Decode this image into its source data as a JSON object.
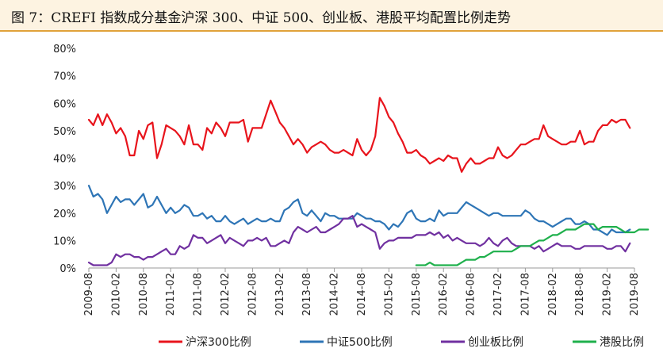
{
  "title": "图 7：CREFI 指数成分基金沪深 300、中证 500、创业板、港股平均配置比例走势",
  "chart_data": {
    "type": "line",
    "ylim": [
      0,
      80
    ],
    "yticks": [
      "0%",
      "10%",
      "20%",
      "30%",
      "40%",
      "50%",
      "60%",
      "70%",
      "80%"
    ],
    "xticks": [
      "2009-08",
      "2010-02",
      "2010-08",
      "2011-02",
      "2011-08",
      "2012-02",
      "2012-08",
      "2013-02",
      "2013-08",
      "2014-02",
      "2014-08",
      "2015-02",
      "2015-08",
      "2016-02",
      "2016-08",
      "2017-02",
      "2017-08",
      "2018-02",
      "2018-08",
      "2019-02",
      "2019-08"
    ],
    "x_start": "2009-08",
    "x_end": "2019-08",
    "legend_position": "bottom",
    "grid": false,
    "series": [
      {
        "name": "沪深300比例",
        "color": "#e8141c",
        "start": "2009-08",
        "values": [
          54,
          52,
          56,
          52,
          56,
          53,
          49,
          51,
          48,
          41,
          41,
          50,
          47,
          52,
          53,
          40,
          45,
          52,
          51,
          50,
          48,
          45,
          52,
          45,
          45,
          43,
          51,
          49,
          53,
          51,
          48,
          53,
          53,
          53,
          54,
          46,
          51,
          51,
          51,
          56,
          61,
          57,
          53,
          51,
          48,
          45,
          47,
          45,
          42,
          44,
          45,
          46,
          45,
          43,
          42,
          42,
          43,
          42,
          41,
          47,
          43,
          41,
          43,
          48,
          62,
          59,
          55,
          53,
          49,
          46,
          42,
          42,
          43,
          41,
          40,
          38,
          39,
          40,
          39,
          41,
          40,
          40,
          35,
          38,
          40,
          38,
          38,
          39,
          40,
          40,
          44,
          41,
          40,
          41,
          43,
          45,
          45,
          46,
          47,
          47,
          52,
          48,
          47,
          46,
          45,
          45,
          46,
          46,
          50,
          45,
          46,
          46,
          50,
          52,
          52,
          54,
          53,
          54,
          54,
          51
        ]
      },
      {
        "name": "中证500比例",
        "color": "#2e75b6",
        "start": "2009-08",
        "values": [
          30,
          26,
          27,
          25,
          20,
          23,
          26,
          24,
          25,
          25,
          23,
          25,
          27,
          22,
          23,
          26,
          23,
          20,
          22,
          20,
          21,
          23,
          22,
          19,
          19,
          20,
          18,
          19,
          17,
          17,
          19,
          17,
          16,
          17,
          18,
          16,
          17,
          18,
          17,
          17,
          18,
          17,
          17,
          21,
          22,
          24,
          25,
          20,
          19,
          21,
          19,
          17,
          20,
          19,
          19,
          18,
          18,
          18,
          18,
          20,
          19,
          18,
          18,
          17,
          17,
          16,
          14,
          16,
          15,
          17,
          20,
          21,
          18,
          17,
          17,
          18,
          17,
          21,
          19,
          20,
          20,
          20,
          22,
          24,
          23,
          22,
          21,
          20,
          19,
          20,
          20,
          19,
          19,
          19,
          19,
          19,
          21,
          20,
          18,
          17,
          17,
          16,
          15,
          16,
          17,
          18,
          18,
          16,
          16,
          17,
          16,
          14,
          14,
          13,
          12,
          14,
          13,
          13,
          13,
          14
        ]
      },
      {
        "name": "创业板比例",
        "color": "#7030a0",
        "start": "2009-08",
        "values": [
          2,
          1,
          1,
          1,
          1,
          2,
          5,
          4,
          5,
          5,
          4,
          4,
          3,
          4,
          4,
          5,
          6,
          7,
          5,
          5,
          8,
          7,
          8,
          12,
          11,
          11,
          9,
          10,
          11,
          12,
          9,
          11,
          10,
          9,
          8,
          10,
          10,
          11,
          10,
          11,
          8,
          8,
          9,
          10,
          9,
          13,
          15,
          14,
          13,
          14,
          15,
          13,
          13,
          14,
          15,
          16,
          18,
          18,
          19,
          15,
          16,
          15,
          14,
          13,
          7,
          9,
          10,
          10,
          11,
          11,
          11,
          11,
          12,
          12,
          12,
          13,
          12,
          13,
          11,
          12,
          10,
          11,
          10,
          9,
          9,
          9,
          8,
          9,
          11,
          9,
          8,
          10,
          11,
          9,
          8,
          8,
          8,
          8,
          7,
          8,
          6,
          7,
          8,
          9,
          8,
          8,
          8,
          7,
          7,
          8,
          8,
          8,
          8,
          8,
          7,
          7,
          8,
          8,
          6,
          9
        ]
      },
      {
        "name": "港股比例",
        "color": "#1fb04c",
        "start": "2015-08",
        "values": [
          1,
          1,
          1,
          2,
          1,
          1,
          1,
          1,
          1,
          1,
          2,
          3,
          3,
          3,
          4,
          4,
          5,
          6,
          6,
          6,
          6,
          6,
          7,
          8,
          8,
          8,
          9,
          10,
          10,
          11,
          12,
          12,
          13,
          14,
          14,
          14,
          15,
          16,
          16,
          16,
          14,
          15,
          15,
          15,
          15,
          14,
          13,
          13,
          13,
          14,
          14,
          14
        ]
      }
    ]
  }
}
